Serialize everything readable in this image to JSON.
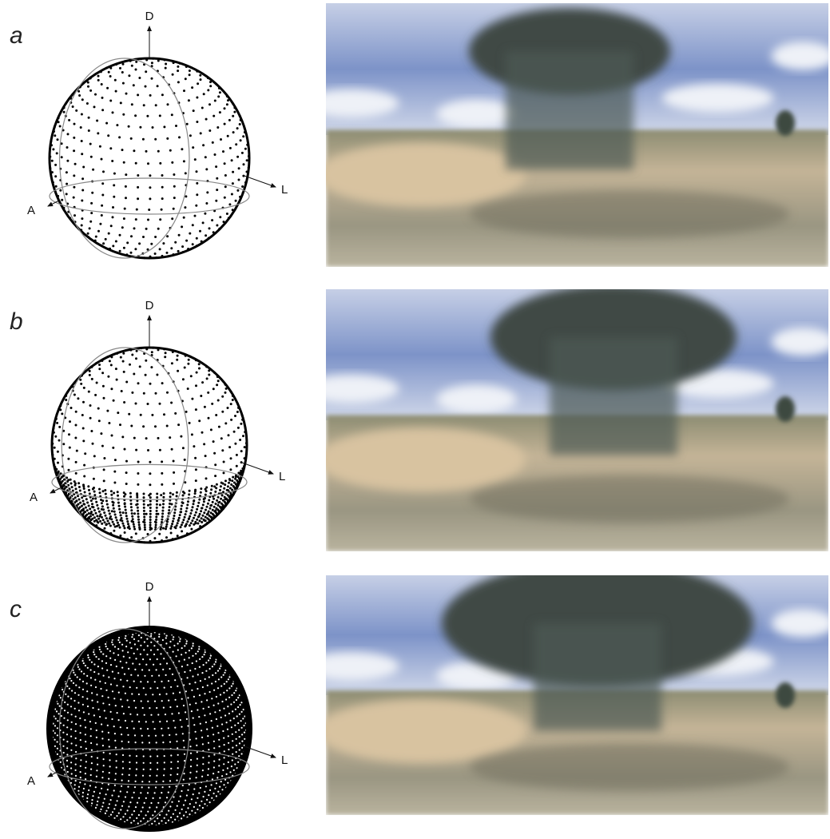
{
  "panels": [
    {
      "label": "a",
      "axes": {
        "dorsal": "D",
        "lateral": "L",
        "anterior": "A"
      }
    },
    {
      "label": "b",
      "axes": {
        "dorsal": "D",
        "lateral": "L",
        "anterior": "A"
      }
    },
    {
      "label": "c",
      "axes": {
        "dorsal": "D",
        "lateral": "L",
        "anterior": "A"
      }
    }
  ]
}
